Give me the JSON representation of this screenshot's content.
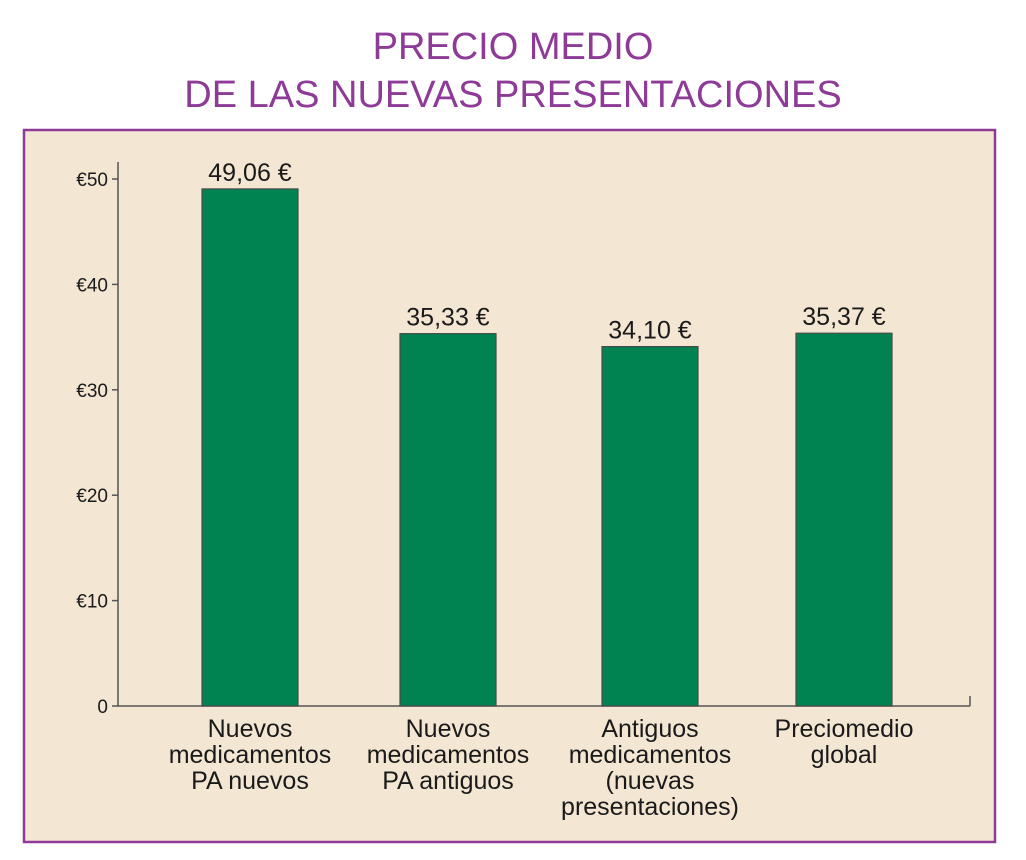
{
  "chart_data": {
    "type": "bar",
    "title_lines": [
      "PRECIO MEDIO",
      "DE LAS NUEVAS PRESENTACIONES"
    ],
    "categories": [
      [
        "Nuevos",
        "medicamentos",
        "PA nuevos"
      ],
      [
        "Nuevos",
        "medicamentos",
        "PA antiguos"
      ],
      [
        "Antiguos",
        "medicamentos",
        "(nuevas",
        "presentaciones)"
      ],
      [
        "Preciomedio",
        "global"
      ]
    ],
    "values": [
      49.06,
      35.33,
      34.1,
      35.37
    ],
    "value_labels": [
      "49,06 €",
      "35,33 €",
      "34,10 €",
      "35,37 €"
    ],
    "yticks": [
      0,
      10,
      20,
      30,
      40,
      50
    ],
    "ytick_labels": [
      "0",
      "€10",
      "€20",
      "€30",
      "€40",
      "€50"
    ],
    "ylim": [
      0,
      50
    ],
    "grid": false,
    "colors": {
      "bar": "#008351",
      "bar_border": "#4a4a4a",
      "plot_background": "#f3e7d3",
      "frame": "#8e3a97",
      "title": "#8e3a97",
      "axis": "#555555"
    }
  }
}
